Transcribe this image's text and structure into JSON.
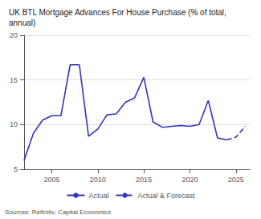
{
  "chart_data": {
    "type": "line",
    "title": "UK BTL Mortgage Advances For House Purchase (% of total,\nannual)",
    "source": "Sources: Refinitiv, Capital Economics",
    "series": [
      {
        "name": "Actual",
        "color": "#3333bb",
        "line_style": "solid",
        "x": [
          2002,
          2003,
          2004,
          2005,
          2006,
          2007,
          2008,
          2009,
          2010,
          2011,
          2012,
          2013,
          2014,
          2015,
          2016,
          2017,
          2018,
          2019,
          2020,
          2021,
          2022,
          2023,
          2024
        ],
        "values": [
          6.0,
          9.0,
          10.5,
          11.0,
          11.0,
          16.7,
          16.7,
          8.7,
          9.5,
          11.1,
          11.2,
          12.5,
          13.0,
          15.3,
          10.3,
          9.7,
          9.8,
          9.9,
          9.8,
          10.0,
          12.7,
          8.5,
          8.3
        ]
      },
      {
        "name": "Actual & Forecast",
        "color": "#3333bb",
        "line_style": "dashed",
        "x": [
          2024,
          2025,
          2026
        ],
        "values": [
          8.3,
          8.6,
          9.8
        ]
      }
    ],
    "xlim": [
      2002,
      2026.5
    ],
    "xticks": [
      2005,
      2010,
      2015,
      2020,
      2025
    ],
    "ylim": [
      5,
      20
    ],
    "yticks": [
      5,
      10,
      15,
      20
    ],
    "grid": true,
    "legend": "bottom"
  }
}
